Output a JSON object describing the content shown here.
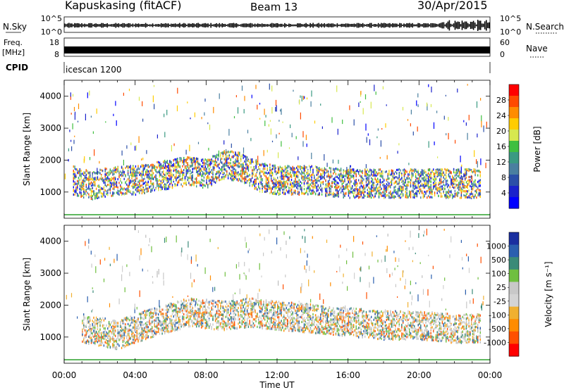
{
  "header": {
    "station": "Kapuskasing (fitACF)",
    "beam": "Beam 13",
    "date": "30/Apr/2015"
  },
  "noise_panel": {
    "left_label": "N.Sky",
    "right_label": "N.Search",
    "left_ticks": [
      "10^5",
      "10^0"
    ],
    "right_ticks": [
      "10^5",
      "10^0"
    ]
  },
  "freq_panel": {
    "left_label_1": "Freq.",
    "left_label_2": "[MHz]",
    "left_ticks": [
      "18",
      "8"
    ],
    "right_label": "Nave",
    "right_ticks": [
      "60",
      "0"
    ]
  },
  "cpid": {
    "label": "CPID",
    "value": "icescan 1200"
  },
  "axes": {
    "ylabel": "Slant Range [km]",
    "xlabel": "Time UT",
    "y_tick_labels": [
      "4000",
      "3000",
      "2000",
      "1000"
    ],
    "x_tick_labels": [
      "00:00",
      "04:00",
      "08:00",
      "12:00",
      "16:00",
      "20:00",
      "00:00"
    ]
  },
  "chart_data": [
    {
      "type": "heatmap",
      "title": "",
      "xlabel": "Time UT",
      "ylabel": "Slant Range [km]",
      "xlim": [
        "00:00",
        "24:00"
      ],
      "ylim": [
        180,
        4500
      ],
      "colorbar": {
        "label": "Power [dB]",
        "ticks": [
          "28",
          "24",
          "20",
          "16",
          "12",
          "8",
          "4"
        ],
        "colors": [
          "#ff0000",
          "#ff4a00",
          "#ff8c00",
          "#ffcc00",
          "#d7e84f",
          "#3fbf3f",
          "#3a9a82",
          "#4a7fa0",
          "#2b4fa8",
          "#1a22cc",
          "#0000ff"
        ]
      },
      "series": [
        {
          "name": "",
          "x": [
            0.5,
            1.0,
            1.5,
            2.0,
            2.5,
            3.0,
            4.0,
            5.0,
            6.0,
            7.0,
            8.0,
            9.0,
            10.0,
            11.0,
            12.0,
            14.0,
            16.0,
            18.0,
            20.0,
            22.0,
            23.5
          ],
          "y": [
            1400,
            1300,
            1250,
            1300,
            1350,
            1400,
            1400,
            1500,
            1600,
            1700,
            1600,
            1900,
            1800,
            1500,
            1400,
            1400,
            1300,
            1300,
            1300,
            1300,
            1300
          ]
        }
      ]
    },
    {
      "type": "heatmap",
      "title": "",
      "xlabel": "Time UT",
      "ylabel": "Slant Range [km]",
      "xlim": [
        "00:00",
        "24:00"
      ],
      "ylim": [
        180,
        4500
      ],
      "colorbar": {
        "label": "Velocity [m s⁻¹]",
        "ticks": [
          "1000",
          "500",
          "100",
          "25",
          "-25",
          "-100",
          "-500",
          "-1000"
        ],
        "colors": [
          "#1a2fa0",
          "#2a5faf",
          "#3a8a78",
          "#6fbf3f",
          "#c8c8c8",
          "#d4d4d4",
          "#f0b030",
          "#ff8c00",
          "#ff5000",
          "#ff0000"
        ]
      },
      "series": [
        {
          "name": "",
          "x": [
            1.0,
            2.0,
            3.0,
            5.0,
            7.0,
            9.0,
            10.5,
            12.0,
            14.0,
            16.0,
            18.0,
            20.0,
            22.0,
            23.5
          ],
          "y": [
            1300,
            1200,
            1100,
            1500,
            1800,
            1700,
            1800,
            1700,
            1600,
            1500,
            1400,
            1400,
            1300,
            1300
          ]
        }
      ]
    }
  ]
}
